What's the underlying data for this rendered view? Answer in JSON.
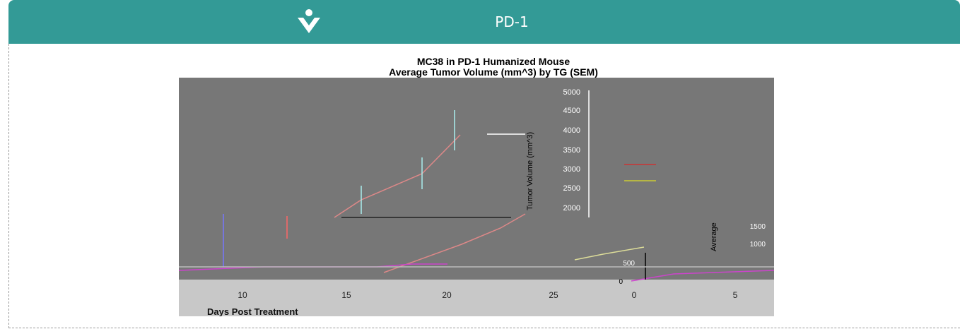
{
  "header": {
    "title": "PD-1"
  },
  "figure": {
    "title_lines": [
      "MC38 in PD-1 Humanized Mouse",
      "Average Tumor Volume (mm^3) by TG (SEM)"
    ],
    "x_ticks": [
      "10",
      "15",
      "20",
      "25",
      "0",
      "5"
    ],
    "x_label": "Days Post Treatment",
    "y_ticks": [
      "5000",
      "4500",
      "4000",
      "3500",
      "3000",
      "2500",
      "2000"
    ],
    "y_label": "Tumor Volume (mm^3)",
    "inset_ticks": [
      "1500",
      "1000",
      "500",
      "0"
    ],
    "inset_label": "Average"
  }
}
